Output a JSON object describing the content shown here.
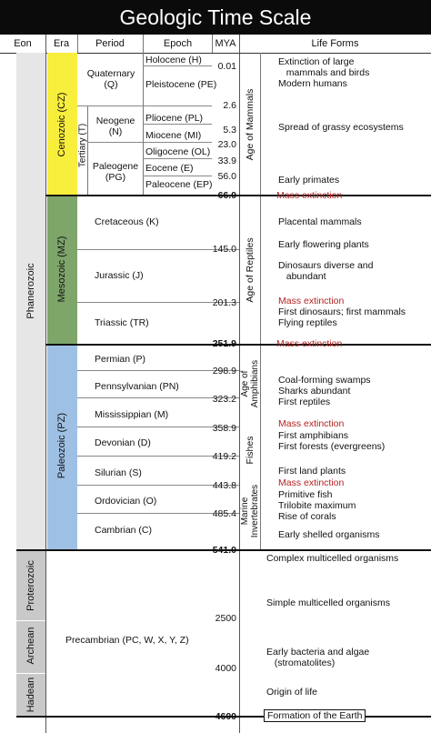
{
  "title": "Geologic Time Scale",
  "headers": {
    "eon": "Eon",
    "era": "Era",
    "period": "Period",
    "epoch": "Epoch",
    "mya": "MYA",
    "life": "Life Forms"
  },
  "eons": {
    "phanerozoic": "Phanerozoic",
    "proterozoic": "Proterozoic",
    "archean": "Archean",
    "hadean": "Hadean"
  },
  "eras": {
    "cenozoic": "Cenozoic (CZ)",
    "mesozoic": "Mesozoic (MZ)",
    "paleozoic": "Paleozoic (PZ)"
  },
  "colors": {
    "cenozoic": "#f8ee3c",
    "mesozoic": "#7ea56a",
    "paleozoic": "#9ec0e4",
    "eon_gray": "#c9c9c9",
    "phanerozoic": "#e6e6e6",
    "mass_extinction": "#b32222"
  },
  "periods": {
    "quaternary": "Quaternary\n(Q)",
    "tertiary": "Tertiary (T)",
    "neogene": "Neogene\n(N)",
    "paleogene": "Paleogene\n(PG)",
    "cretaceous": "Cretaceous (K)",
    "jurassic": "Jurassic (J)",
    "triassic": "Triassic (TR)",
    "permian": "Permian (P)",
    "pennsylvanian": "Pennsylvanian (PN)",
    "mississippian": "Mississippian (M)",
    "devonian": "Devonian (D)",
    "silurian": "Silurian (S)",
    "ordovician": "Ordovician (O)",
    "cambrian": "Cambrian (C)",
    "precambrian": "Precambrian (PC, W, X, Y, Z)"
  },
  "epochs": {
    "holocene": "Holocene (H)",
    "pleistocene": "Pleistocene (PE)",
    "pliocene": "Pliocene (PL)",
    "miocene": "Miocene (MI)",
    "oligocene": "Oligocene (OL)",
    "eocene": "Eocene (E)",
    "paleocene": "Paleocene (EP)"
  },
  "mya": {
    "m001": "0.01",
    "m26": "2.6",
    "m53": "5.3",
    "m230": "23.0",
    "m339": "33.9",
    "m560": "56.0",
    "m660": "66.0",
    "m1450": "145.0",
    "m2013": "201.3",
    "m2519": "251.9",
    "m2989": "298.9",
    "m3232": "323.2",
    "m3589": "358.9",
    "m4192": "419.2",
    "m4438": "443.8",
    "m4854": "485.4",
    "m5410": "541.0",
    "m2500": "2500",
    "m4000": "4000",
    "m4600": "4600"
  },
  "ages": {
    "mammals": "Age of Mammals",
    "reptiles": "Age of Reptiles",
    "amphibians": "Age of\nAmphibians",
    "fishes": "Fishes",
    "marine": "Marine\nInvertebrates"
  },
  "life": {
    "l1": "Extinction of large\n   mammals and birds\nModern humans",
    "l2": "Spread of grassy ecosystems",
    "l3": "Early primates",
    "l4": "Mass extinction",
    "l5": "Placental mammals",
    "l6": "Early flowering plants",
    "l7": "Dinosaurs diverse and\n   abundant",
    "l8": "Mass extinction",
    "l9": "First dinosaurs; first mammals\nFlying reptiles",
    "l10": "Mass extinction",
    "l11": "Coal-forming swamps\nSharks abundant\nFirst reptiles",
    "l12": "Mass extinction",
    "l13": "First amphibians\nFirst forests (evergreens)",
    "l14": "First land plants",
    "l15": "Mass extinction",
    "l16": "Primitive fish\nTrilobite maximum\nRise of corals",
    "l17": "Early shelled organisms",
    "l18": "Complex multicelled organisms",
    "l19": "Simple multicelled organisms",
    "l20": "Early bacteria and algae\n   (stromatolites)",
    "l21": "Origin of life",
    "l22": "Formation of the Earth"
  }
}
